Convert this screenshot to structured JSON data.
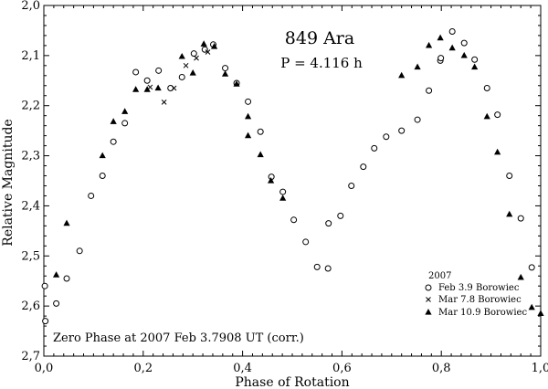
{
  "chart_data": {
    "type": "scatter",
    "title": "849 Ara",
    "subtitle": "P = 4.116 h",
    "xlabel": "Phase of Rotation",
    "ylabel": "Relative Magnitude",
    "xlim": [
      0.0,
      1.0
    ],
    "ylim": [
      2.0,
      2.7
    ],
    "y_inverted": true,
    "x_ticks": [
      "0,0",
      "0,2",
      "0,4",
      "0,6",
      "0,8",
      "1,0"
    ],
    "x_tick_values": [
      0.0,
      0.2,
      0.4,
      0.6,
      0.8,
      1.0
    ],
    "y_ticks": [
      "2,0",
      "2,1",
      "2,2",
      "2,3",
      "2,4",
      "2,5",
      "2,6",
      "2,7"
    ],
    "y_tick_values": [
      2.0,
      2.1,
      2.2,
      2.3,
      2.4,
      2.5,
      2.6,
      2.7
    ],
    "grid": false,
    "legend_title": "2007",
    "legend_position": "bottom-right",
    "annotation": "Zero Phase at 2007 Feb 3.7908 UT (corr.)",
    "series": [
      {
        "name": "Feb 3.9 Borowiec",
        "marker": "circle",
        "points": [
          [
            0.002,
            2.56
          ],
          [
            0.003,
            2.63
          ],
          [
            0.025,
            2.595
          ],
          [
            0.046,
            2.545
          ],
          [
            0.072,
            2.49
          ],
          [
            0.095,
            2.38
          ],
          [
            0.118,
            2.34
          ],
          [
            0.14,
            2.272
          ],
          [
            0.163,
            2.235
          ],
          [
            0.185,
            2.133
          ],
          [
            0.208,
            2.15
          ],
          [
            0.231,
            2.13
          ],
          [
            0.255,
            2.165
          ],
          [
            0.278,
            2.143
          ],
          [
            0.302,
            2.096
          ],
          [
            0.324,
            2.088
          ],
          [
            0.341,
            2.078
          ],
          [
            0.365,
            2.125
          ],
          [
            0.388,
            2.155
          ],
          [
            0.411,
            2.192
          ],
          [
            0.436,
            2.252
          ],
          [
            0.458,
            2.342
          ],
          [
            0.481,
            2.372
          ],
          [
            0.503,
            2.428
          ],
          [
            0.527,
            2.472
          ],
          [
            0.55,
            2.522
          ],
          [
            0.572,
            2.525
          ],
          [
            0.573,
            2.435
          ],
          [
            0.597,
            2.42
          ],
          [
            0.619,
            2.36
          ],
          [
            0.643,
            2.322
          ],
          [
            0.665,
            2.285
          ],
          [
            0.689,
            2.262
          ],
          [
            0.72,
            2.25
          ],
          [
            0.752,
            2.228
          ],
          [
            0.775,
            2.17
          ],
          [
            0.798,
            2.11
          ],
          [
            0.799,
            2.105
          ],
          [
            0.822,
            2.052
          ],
          [
            0.846,
            2.075
          ],
          [
            0.867,
            2.108
          ],
          [
            0.892,
            2.165
          ],
          [
            0.913,
            2.218
          ],
          [
            0.937,
            2.34
          ],
          [
            0.96,
            2.425
          ],
          [
            0.982,
            2.523
          ]
        ]
      },
      {
        "name": "Mar 7.8 Borowiec",
        "marker": "cross",
        "points": [
          [
            0.214,
            2.163
          ],
          [
            0.242,
            2.193
          ],
          [
            0.262,
            2.165
          ],
          [
            0.286,
            2.12
          ],
          [
            0.307,
            2.105
          ],
          [
            0.33,
            2.093
          ]
        ]
      },
      {
        "name": "Mar 10.9 Borowiec",
        "marker": "triangle",
        "points": [
          [
            0.025,
            2.538
          ],
          [
            0.046,
            2.435
          ],
          [
            0.118,
            2.3
          ],
          [
            0.14,
            2.232
          ],
          [
            0.163,
            2.212
          ],
          [
            0.185,
            2.168
          ],
          [
            0.208,
            2.168
          ],
          [
            0.23,
            2.165
          ],
          [
            0.278,
            2.102
          ],
          [
            0.3,
            2.135
          ],
          [
            0.322,
            2.077
          ],
          [
            0.343,
            2.082
          ],
          [
            0.365,
            2.137
          ],
          [
            0.388,
            2.157
          ],
          [
            0.411,
            2.222
          ],
          [
            0.411,
            2.26
          ],
          [
            0.436,
            2.298
          ],
          [
            0.457,
            2.35
          ],
          [
            0.481,
            2.385
          ],
          [
            0.72,
            2.14
          ],
          [
            0.752,
            2.123
          ],
          [
            0.775,
            2.08
          ],
          [
            0.798,
            2.065
          ],
          [
            0.822,
            2.085
          ],
          [
            0.846,
            2.1
          ],
          [
            0.867,
            2.123
          ],
          [
            0.892,
            2.222
          ],
          [
            0.913,
            2.293
          ],
          [
            0.937,
            2.417
          ],
          [
            0.96,
            2.543
          ],
          [
            0.982,
            2.603
          ],
          [
            1.0,
            2.615
          ]
        ]
      }
    ]
  }
}
